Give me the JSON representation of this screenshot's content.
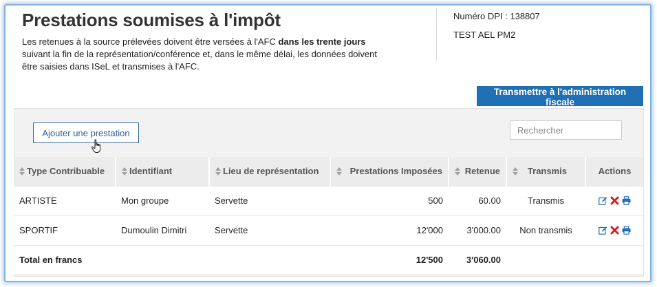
{
  "header": {
    "title": "Prestations soumises à l'impôt",
    "intro_part1": "Les retenues à la source prélevées doivent être versées à l'AFC ",
    "intro_bold": "dans les trente jours",
    "intro_part2": " suivant la fin de la représentation/conférence et, dans le même délai, les données doivent être saisies dans ISeL et transmises à l'AFC.",
    "dpi": "Numéro DPI : 138807",
    "organisation": "TEST AEL PM2"
  },
  "toolbar": {
    "transmit_label": "Transmettre à l'administration fiscale",
    "add_label": "Ajouter une prestation",
    "search_placeholder": "Rechercher"
  },
  "table": {
    "columns": {
      "type": "Type Contribuable",
      "identifiant": "Identifiant",
      "lieu": "Lieu de représentation",
      "prestations": "Prestations Imposées",
      "retenue": "Retenue",
      "transmis": "Transmis",
      "actions": "Actions"
    },
    "rows": [
      {
        "type": "ARTISTE",
        "identifiant": "Mon groupe",
        "lieu": "Servette",
        "prestations": "500",
        "retenue": "60.00",
        "transmis": "Transmis"
      },
      {
        "type": "SPORTIF",
        "identifiant": "Dumoulin Dimitri",
        "lieu": "Servette",
        "prestations": "12'000",
        "retenue": "3'000.00",
        "transmis": "Non transmis"
      }
    ],
    "total": {
      "label": "Total en francs",
      "prestations": "12'500",
      "retenue": "3'060.00"
    }
  },
  "colors": {
    "primary": "#1f6fb5",
    "delete": "#d9201e",
    "frame": "#7fb3e8"
  },
  "icons": [
    "sort-icon",
    "edit-icon",
    "delete-icon",
    "print-icon",
    "hand-cursor-icon"
  ]
}
